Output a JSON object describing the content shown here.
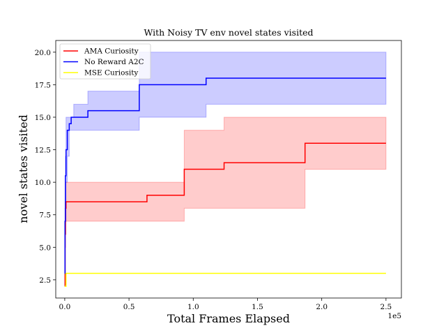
{
  "chart_data": {
    "type": "line",
    "title": "With Noisy TV env novel states visited",
    "xlabel": "Total Frames Elapsed",
    "ylabel": "novel states visited",
    "x_offset_label": "1e5",
    "xlim": [
      -0.07,
      2.62
    ],
    "ylim": [
      1.1,
      20.9
    ],
    "x_ticks": [
      0.0,
      0.5,
      1.0,
      1.5,
      2.0,
      2.5
    ],
    "x_tick_labels": [
      "0.0",
      "0.5",
      "1.0",
      "1.5",
      "2.0",
      "2.5"
    ],
    "y_ticks": [
      2.5,
      5.0,
      7.5,
      10.0,
      12.5,
      15.0,
      17.5,
      20.0
    ],
    "y_tick_labels": [
      "2.5",
      "5.0",
      "7.5",
      "10.0",
      "12.5",
      "15.0",
      "17.5",
      "20.0"
    ],
    "grid": false,
    "legend_position": "top-left",
    "series": [
      {
        "name": "AMA Curiosity",
        "color": "#ff0000",
        "band_color": "#ff0000",
        "x": [
          0.0,
          0.003,
          0.006,
          0.01,
          0.64,
          0.93,
          1.24,
          1.87,
          2.5
        ],
        "y": [
          2.0,
          6.0,
          8.0,
          8.5,
          9.0,
          11.0,
          11.5,
          13.0,
          13.0
        ],
        "lower": [
          2.0,
          5.0,
          7.0,
          7.0,
          7.0,
          8.0,
          8.0,
          11.0,
          11.0
        ],
        "upper": [
          2.0,
          7.0,
          10.0,
          10.0,
          10.0,
          14.0,
          15.0,
          15.0,
          15.0
        ]
      },
      {
        "name": "No Reward A2C",
        "color": "#0000ff",
        "band_color": "#0000ff",
        "x": [
          0.0,
          0.002,
          0.005,
          0.01,
          0.02,
          0.035,
          0.05,
          0.07,
          0.18,
          0.58,
          1.1,
          2.5
        ],
        "y": [
          3.0,
          7.0,
          10.5,
          12.5,
          14.0,
          14.5,
          15.0,
          15.0,
          15.5,
          17.5,
          18.0,
          18.0
        ],
        "lower": [
          2.0,
          5.0,
          7.0,
          10.0,
          12.0,
          14.0,
          14.0,
          14.0,
          14.0,
          15.0,
          16.0,
          16.0
        ],
        "upper": [
          3.0,
          8.0,
          12.0,
          15.0,
          15.0,
          15.0,
          15.0,
          16.0,
          17.0,
          20.0,
          20.0,
          20.0
        ]
      },
      {
        "name": "MSE Curiosity",
        "color": "#ffff00",
        "band_color": "#ffff00",
        "x": [
          0.0,
          0.01,
          2.5
        ],
        "y": [
          2.0,
          3.0,
          3.0
        ],
        "lower": [
          2.0,
          3.0,
          3.0
        ],
        "upper": [
          3.0,
          3.0,
          3.0
        ]
      }
    ]
  }
}
